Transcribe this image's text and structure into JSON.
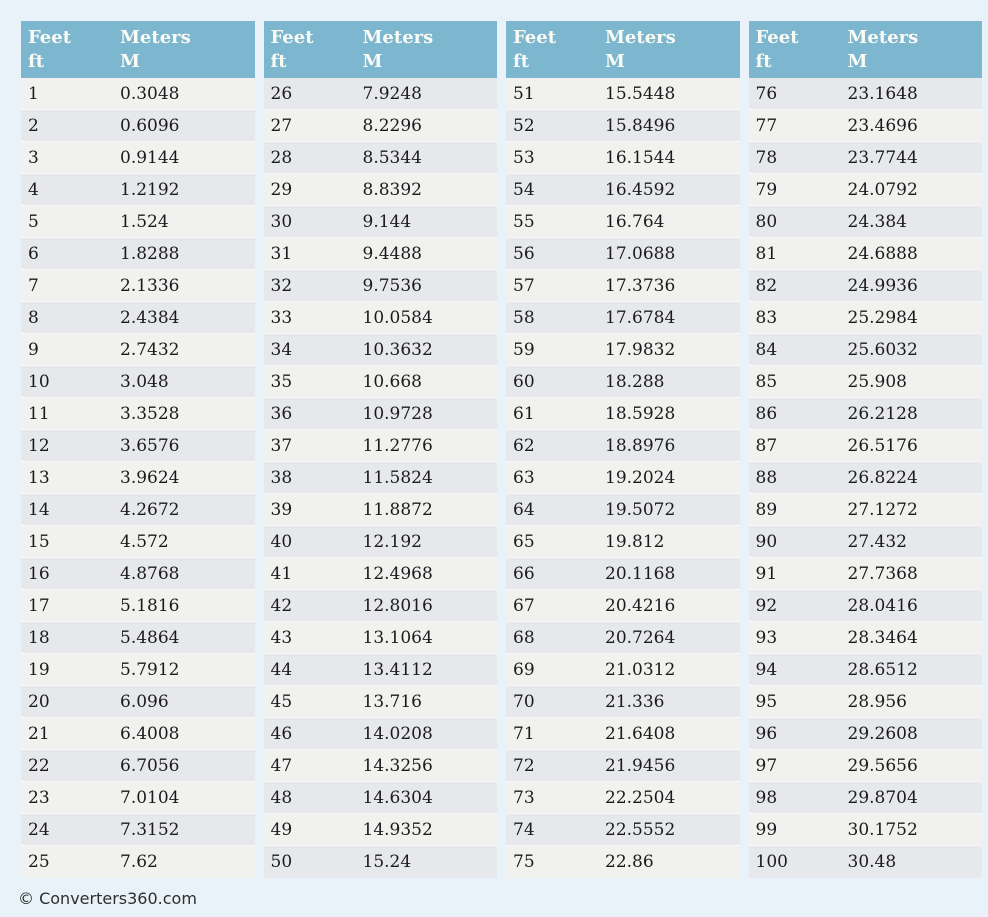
{
  "theme": {
    "page_background": "#e8f2f8",
    "header_background": "#7db6cf",
    "header_text_color": "#fbfbf5",
    "row_odd_feet_background": "#f1f1ef",
    "row_even_feet_background": "#e7e8ec",
    "cell_text_color": "#1b1b1b"
  },
  "header": {
    "columns": [
      {
        "line1": "Feet",
        "line2": "ft"
      },
      {
        "line1": "Meters",
        "line2": "M"
      }
    ]
  },
  "tables": [
    {
      "rows": [
        [
          "1",
          "0.3048"
        ],
        [
          "2",
          "0.6096"
        ],
        [
          "3",
          "0.9144"
        ],
        [
          "4",
          "1.2192"
        ],
        [
          "5",
          "1.524"
        ],
        [
          "6",
          "1.8288"
        ],
        [
          "7",
          "2.1336"
        ],
        [
          "8",
          "2.4384"
        ],
        [
          "9",
          "2.7432"
        ],
        [
          "10",
          "3.048"
        ],
        [
          "11",
          "3.3528"
        ],
        [
          "12",
          "3.6576"
        ],
        [
          "13",
          "3.9624"
        ],
        [
          "14",
          "4.2672"
        ],
        [
          "15",
          "4.572"
        ],
        [
          "16",
          "4.8768"
        ],
        [
          "17",
          "5.1816"
        ],
        [
          "18",
          "5.4864"
        ],
        [
          "19",
          "5.7912"
        ],
        [
          "20",
          "6.096"
        ],
        [
          "21",
          "6.4008"
        ],
        [
          "22",
          "6.7056"
        ],
        [
          "23",
          "7.0104"
        ],
        [
          "24",
          "7.3152"
        ],
        [
          "25",
          "7.62"
        ]
      ]
    },
    {
      "rows": [
        [
          "26",
          "7.9248"
        ],
        [
          "27",
          "8.2296"
        ],
        [
          "28",
          "8.5344"
        ],
        [
          "29",
          "8.8392"
        ],
        [
          "30",
          "9.144"
        ],
        [
          "31",
          "9.4488"
        ],
        [
          "32",
          "9.7536"
        ],
        [
          "33",
          "10.0584"
        ],
        [
          "34",
          "10.3632"
        ],
        [
          "35",
          "10.668"
        ],
        [
          "36",
          "10.9728"
        ],
        [
          "37",
          "11.2776"
        ],
        [
          "38",
          "11.5824"
        ],
        [
          "39",
          "11.8872"
        ],
        [
          "40",
          "12.192"
        ],
        [
          "41",
          "12.4968"
        ],
        [
          "42",
          "12.8016"
        ],
        [
          "43",
          "13.1064"
        ],
        [
          "44",
          "13.4112"
        ],
        [
          "45",
          "13.716"
        ],
        [
          "46",
          "14.0208"
        ],
        [
          "47",
          "14.3256"
        ],
        [
          "48",
          "14.6304"
        ],
        [
          "49",
          "14.9352"
        ],
        [
          "50",
          "15.24"
        ]
      ]
    },
    {
      "rows": [
        [
          "51",
          "15.5448"
        ],
        [
          "52",
          "15.8496"
        ],
        [
          "53",
          "16.1544"
        ],
        [
          "54",
          "16.4592"
        ],
        [
          "55",
          "16.764"
        ],
        [
          "56",
          "17.0688"
        ],
        [
          "57",
          "17.3736"
        ],
        [
          "58",
          "17.6784"
        ],
        [
          "59",
          "17.9832"
        ],
        [
          "60",
          "18.288"
        ],
        [
          "61",
          "18.5928"
        ],
        [
          "62",
          "18.8976"
        ],
        [
          "63",
          "19.2024"
        ],
        [
          "64",
          "19.5072"
        ],
        [
          "65",
          "19.812"
        ],
        [
          "66",
          "20.1168"
        ],
        [
          "67",
          "20.4216"
        ],
        [
          "68",
          "20.7264"
        ],
        [
          "69",
          "21.0312"
        ],
        [
          "70",
          "21.336"
        ],
        [
          "71",
          "21.6408"
        ],
        [
          "72",
          "21.9456"
        ],
        [
          "73",
          "22.2504"
        ],
        [
          "74",
          "22.5552"
        ],
        [
          "75",
          "22.86"
        ]
      ]
    },
    {
      "rows": [
        [
          "76",
          "23.1648"
        ],
        [
          "77",
          "23.4696"
        ],
        [
          "78",
          "23.7744"
        ],
        [
          "79",
          "24.0792"
        ],
        [
          "80",
          "24.384"
        ],
        [
          "81",
          "24.6888"
        ],
        [
          "82",
          "24.9936"
        ],
        [
          "83",
          "25.2984"
        ],
        [
          "84",
          "25.6032"
        ],
        [
          "85",
          "25.908"
        ],
        [
          "86",
          "26.2128"
        ],
        [
          "87",
          "26.5176"
        ],
        [
          "88",
          "26.8224"
        ],
        [
          "89",
          "27.1272"
        ],
        [
          "90",
          "27.432"
        ],
        [
          "91",
          "27.7368"
        ],
        [
          "92",
          "28.0416"
        ],
        [
          "93",
          "28.3464"
        ],
        [
          "94",
          "28.6512"
        ],
        [
          "95",
          "28.956"
        ],
        [
          "96",
          "29.2608"
        ],
        [
          "97",
          "29.5656"
        ],
        [
          "98",
          "29.8704"
        ],
        [
          "99",
          "30.1752"
        ],
        [
          "100",
          "30.48"
        ]
      ]
    }
  ],
  "footer": {
    "copyright": "© Converters360.com"
  }
}
